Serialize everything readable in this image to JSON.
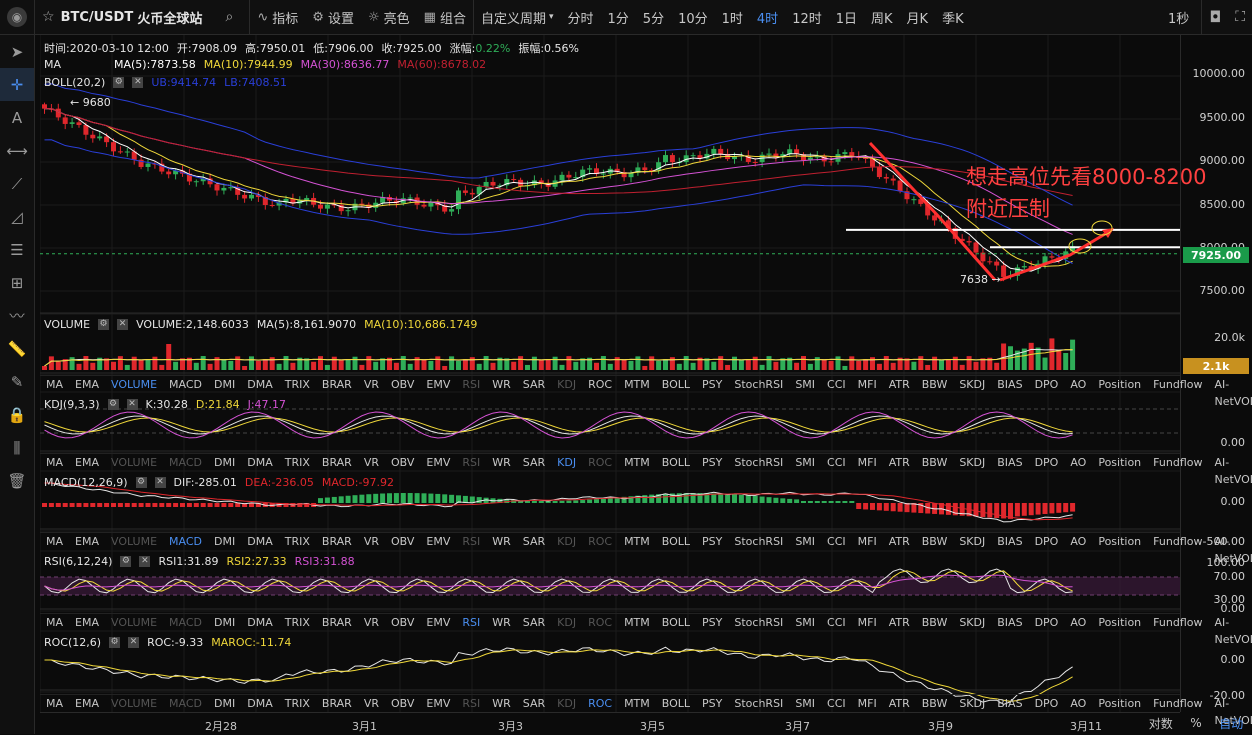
{
  "toolbar": {
    "symbol": "BTC/USDT",
    "exchange": "火币全球站",
    "indicator": "指标",
    "settings": "设置",
    "theme": "亮色",
    "combine": "组合",
    "custom_period": "自定义周期",
    "periods": [
      "分时",
      "1分",
      "5分",
      "10分",
      "1时",
      "4时",
      "12时",
      "1日",
      "周K",
      "月K",
      "季K"
    ],
    "active_period": "4时",
    "interval": "1秒"
  },
  "colors": {
    "up": "#2fae58",
    "down": "#e0272c",
    "ma5": "#ffffff",
    "ma10": "#f0d83a",
    "ma30": "#d452d4",
    "ma60": "#c02030",
    "boll": "#2a3fd8",
    "accent": "#4a8ef0"
  },
  "info_line": {
    "time": "时间:2020-03-10 12:00",
    "open": "开:7908.09",
    "high": "高:7950.01",
    "low": "低:7906.00",
    "close": "收:7925.00",
    "chg_label": "涨幅:",
    "chg": "0.22%",
    "amp": "振幅:0.56%"
  },
  "ma_legend": {
    "name": "MA",
    "ma5": "MA(5):7873.58",
    "ma10": "MA(10):7944.99",
    "ma30": "MA(30):8636.77",
    "ma60": "MA(60):8678.02"
  },
  "boll_legend": {
    "name": "BOLL(20,2)",
    "ub": "UB:9414.74",
    "lb": "LB:7408.51"
  },
  "price_axis": [
    "10000.00",
    "9500.00",
    "9000.00",
    "8500.00",
    "8000.00",
    "7500.00"
  ],
  "current_price": "7925.00",
  "high_mark": "← 9680",
  "low_mark": "7638 →",
  "annotation": [
    "想走高位先看8000-8200",
    "附近压制"
  ],
  "volume_legend": {
    "name": "VOLUME",
    "vol": "VOLUME:2,148.6033",
    "ma5": "MA(5):8,161.9070",
    "ma10": "MA(10):10,686.1749"
  },
  "volume_axis": [
    "20.0k"
  ],
  "volume_tag": "2.1k",
  "indicator_tabs": [
    "MA",
    "EMA",
    "VOLUME",
    "MACD",
    "DMI",
    "DMA",
    "TRIX",
    "BRAR",
    "VR",
    "OBV",
    "EMV",
    "RSI",
    "WR",
    "SAR",
    "KDJ",
    "ROC",
    "MTM",
    "BOLL",
    "PSY",
    "StochRSI",
    "SMI",
    "CCI",
    "MFI",
    "ATR",
    "BBW",
    "SKDJ",
    "BIAS",
    "DPO",
    "AO",
    "Position",
    "Fundflow",
    "AI-NetVOL"
  ],
  "kdj_legend": {
    "name": "KDJ(9,3,3)",
    "k": "K:30.28",
    "d": "D:21.84",
    "j": "J:47.17"
  },
  "kdj_axis": [
    "0.00"
  ],
  "macd_legend": {
    "name": "MACD(12,26,9)",
    "dif": "DIF:-285.01",
    "dea": "DEA:-236.05",
    "macd": "MACD:-97.92"
  },
  "macd_axis": [
    "0.00",
    "-500.00"
  ],
  "rsi_legend": {
    "name": "RSI(6,12,24)",
    "r1": "RSI1:31.89",
    "r2": "RSI2:27.33",
    "r3": "RSI3:31.88"
  },
  "rsi_axis": [
    "100.00",
    "70.00",
    "30.00",
    "0.00"
  ],
  "roc_legend": {
    "name": "ROC(12,6)",
    "roc": "ROC:-9.33",
    "maroc": "MAROC:-11.74"
  },
  "roc_axis": [
    "0.00",
    "-20.00"
  ],
  "x_axis": [
    "2月28",
    "3月1",
    "3月3",
    "3月5",
    "3月7",
    "3月9",
    "3月11"
  ],
  "bottom": {
    "log": "对数",
    "pct": "%",
    "auto": "自动"
  }
}
